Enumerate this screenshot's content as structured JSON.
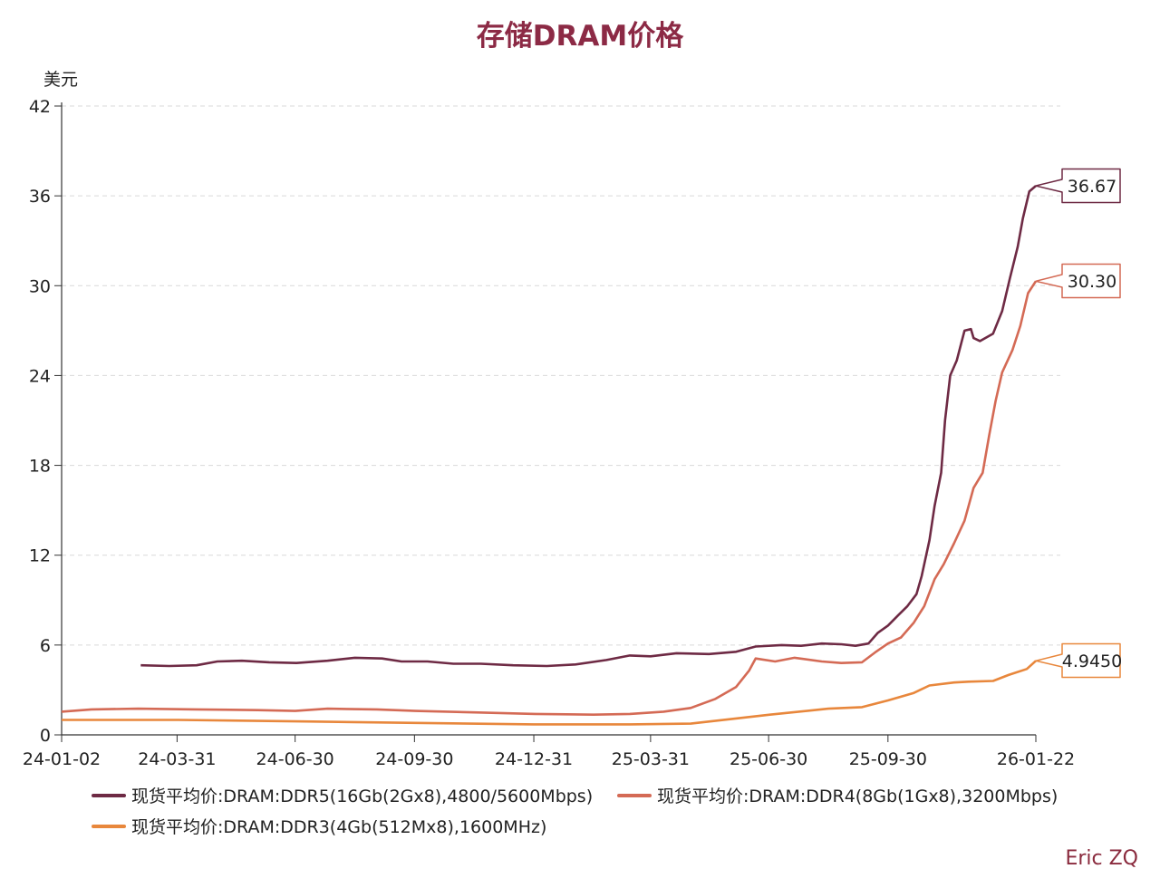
{
  "chart_data": {
    "type": "line",
    "title": "存储DRAM价格",
    "ylabel": "美元",
    "xlabel": "",
    "ylim": [
      0,
      42
    ],
    "y_ticks": [
      "0",
      "6",
      "12",
      "18",
      "24",
      "30",
      "36",
      "42"
    ],
    "y_tick_values": [
      0,
      6,
      12,
      18,
      24,
      30,
      36,
      42
    ],
    "x_range": [
      "2024-01-02",
      "2026-01-22"
    ],
    "x_ticks": [
      "24-01-02",
      "24-03-31",
      "24-06-30",
      "24-09-30",
      "24-12-31",
      "25-03-31",
      "25-06-30",
      "25-09-30",
      "26-01-22"
    ],
    "x_tick_dates": [
      "2024-01-02",
      "2024-03-31",
      "2024-06-30",
      "2024-09-30",
      "2024-12-31",
      "2025-03-31",
      "2025-06-30",
      "2025-09-30",
      "2026-01-22"
    ],
    "grid": "horizontal-dashed",
    "legend_position": "bottom",
    "series": [
      {
        "name": "现货平均价:DRAM:DDR5(16Gb(2Gx8),4800/5600Mbps)",
        "color": "#6e2a44",
        "end_label": "36.67",
        "points": [
          [
            "2024-03-03",
            4.65
          ],
          [
            "2024-03-25",
            4.6
          ],
          [
            "2024-04-15",
            4.65
          ],
          [
            "2024-05-01",
            4.9
          ],
          [
            "2024-05-20",
            4.95
          ],
          [
            "2024-06-10",
            4.85
          ],
          [
            "2024-07-01",
            4.8
          ],
          [
            "2024-07-25",
            4.95
          ],
          [
            "2024-08-15",
            5.15
          ],
          [
            "2024-09-05",
            5.1
          ],
          [
            "2024-09-20",
            4.9
          ],
          [
            "2024-10-10",
            4.9
          ],
          [
            "2024-10-30",
            4.75
          ],
          [
            "2024-11-20",
            4.75
          ],
          [
            "2024-12-15",
            4.65
          ],
          [
            "2025-01-10",
            4.6
          ],
          [
            "2025-02-01",
            4.7
          ],
          [
            "2025-02-25",
            5.0
          ],
          [
            "2025-03-15",
            5.3
          ],
          [
            "2025-03-31",
            5.25
          ],
          [
            "2025-04-20",
            5.45
          ],
          [
            "2025-05-15",
            5.4
          ],
          [
            "2025-06-05",
            5.55
          ],
          [
            "2025-06-20",
            5.9
          ],
          [
            "2025-07-10",
            6.0
          ],
          [
            "2025-07-25",
            5.95
          ],
          [
            "2025-08-10",
            6.1
          ],
          [
            "2025-08-25",
            6.05
          ],
          [
            "2025-09-05",
            5.95
          ],
          [
            "2025-09-15",
            6.1
          ],
          [
            "2025-09-22",
            6.8
          ],
          [
            "2025-09-30",
            7.3
          ],
          [
            "2025-10-08",
            8.0
          ],
          [
            "2025-10-15",
            8.6
          ],
          [
            "2025-10-22",
            9.4
          ],
          [
            "2025-10-26",
            10.6
          ],
          [
            "2025-11-01",
            13.0
          ],
          [
            "2025-11-05",
            15.3
          ],
          [
            "2025-11-10",
            17.5
          ],
          [
            "2025-11-13",
            21.0
          ],
          [
            "2025-11-17",
            24.0
          ],
          [
            "2025-11-22",
            25.0
          ],
          [
            "2025-11-28",
            27.0
          ],
          [
            "2025-12-03",
            27.1
          ],
          [
            "2025-12-05",
            26.5
          ],
          [
            "2025-12-10",
            26.3
          ],
          [
            "2025-12-20",
            26.8
          ],
          [
            "2025-12-27",
            28.3
          ],
          [
            "2026-01-02",
            30.5
          ],
          [
            "2026-01-08",
            32.6
          ],
          [
            "2026-01-12",
            34.5
          ],
          [
            "2026-01-17",
            36.3
          ],
          [
            "2026-01-22",
            36.67
          ]
        ]
      },
      {
        "name": "现货平均价:DRAM:DDR4(8Gb(1Gx8),3200Mbps)",
        "color": "#d46a55",
        "end_label": "30.30",
        "points": [
          [
            "2024-01-02",
            1.55
          ],
          [
            "2024-01-25",
            1.7
          ],
          [
            "2024-03-01",
            1.75
          ],
          [
            "2024-04-15",
            1.7
          ],
          [
            "2024-06-01",
            1.65
          ],
          [
            "2024-06-30",
            1.6
          ],
          [
            "2024-07-25",
            1.75
          ],
          [
            "2024-09-01",
            1.7
          ],
          [
            "2024-10-01",
            1.6
          ],
          [
            "2024-11-15",
            1.5
          ],
          [
            "2025-01-01",
            1.4
          ],
          [
            "2025-02-15",
            1.35
          ],
          [
            "2025-03-15",
            1.4
          ],
          [
            "2025-04-10",
            1.55
          ],
          [
            "2025-05-01",
            1.8
          ],
          [
            "2025-05-20",
            2.4
          ],
          [
            "2025-06-05",
            3.2
          ],
          [
            "2025-06-15",
            4.3
          ],
          [
            "2025-06-20",
            5.1
          ],
          [
            "2025-07-05",
            4.9
          ],
          [
            "2025-07-20",
            5.15
          ],
          [
            "2025-08-10",
            4.9
          ],
          [
            "2025-08-25",
            4.8
          ],
          [
            "2025-09-10",
            4.85
          ],
          [
            "2025-09-20",
            5.5
          ],
          [
            "2025-09-30",
            6.1
          ],
          [
            "2025-10-10",
            6.5
          ],
          [
            "2025-10-20",
            7.5
          ],
          [
            "2025-10-28",
            8.6
          ],
          [
            "2025-11-05",
            10.4
          ],
          [
            "2025-11-12",
            11.4
          ],
          [
            "2025-11-20",
            12.8
          ],
          [
            "2025-11-28",
            14.3
          ],
          [
            "2025-12-05",
            16.5
          ],
          [
            "2025-12-12",
            17.5
          ],
          [
            "2025-12-17",
            20.0
          ],
          [
            "2025-12-22",
            22.3
          ],
          [
            "2025-12-27",
            24.2
          ],
          [
            "2026-01-04",
            25.7
          ],
          [
            "2026-01-10",
            27.3
          ],
          [
            "2026-01-16",
            29.5
          ],
          [
            "2026-01-22",
            30.3
          ]
        ]
      },
      {
        "name": "现货平均价:DRAM:DDR3(4Gb(512Mx8),1600MHz)",
        "color": "#e8873c",
        "end_label": "4.9450",
        "points": [
          [
            "2024-01-02",
            1.0
          ],
          [
            "2024-04-01",
            1.0
          ],
          [
            "2024-07-01",
            0.9
          ],
          [
            "2024-10-01",
            0.8
          ],
          [
            "2024-12-31",
            0.7
          ],
          [
            "2025-03-15",
            0.7
          ],
          [
            "2025-05-01",
            0.75
          ],
          [
            "2025-06-01",
            1.05
          ],
          [
            "2025-07-01",
            1.35
          ],
          [
            "2025-08-15",
            1.75
          ],
          [
            "2025-09-10",
            1.85
          ],
          [
            "2025-09-30",
            2.3
          ],
          [
            "2025-10-20",
            2.8
          ],
          [
            "2025-11-01",
            3.3
          ],
          [
            "2025-11-20",
            3.5
          ],
          [
            "2025-12-01",
            3.55
          ],
          [
            "2025-12-20",
            3.6
          ],
          [
            "2026-01-01",
            4.0
          ],
          [
            "2026-01-15",
            4.4
          ],
          [
            "2026-01-22",
            4.945
          ]
        ]
      }
    ]
  },
  "watermark": "Eric ZQ"
}
